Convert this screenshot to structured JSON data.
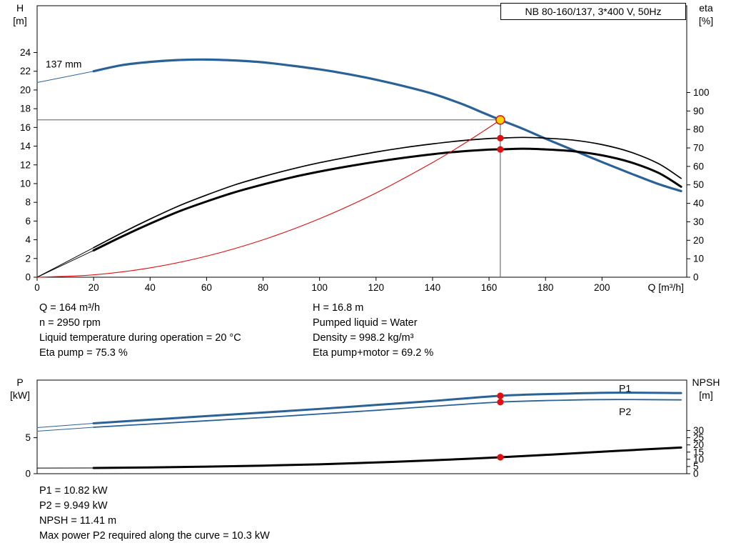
{
  "title_box": "NB 80-160/137, 3*400 V, 50Hz",
  "info_top": {
    "left": [
      "Q = 164 m³/h",
      "n = 2950 rpm",
      "Liquid temperature during operation = 20 °C",
      "Eta pump = 75.3 %"
    ],
    "right": [
      "H = 16.8 m",
      "Pumped liquid = Water",
      "Density = 998.2 kg/m³",
      "Eta pump+motor = 69.2 %"
    ]
  },
  "info_bottom": [
    "P1 = 10.82 kW",
    "P2 = 9.949 kW",
    "NPSH = 11.41 m",
    "Max power P2 required along the curve = 10.3 kW"
  ],
  "colors": {
    "curve_blue": "#2b6296",
    "curve_black": "#000000",
    "marker_red": "#e01010",
    "duty_yellow": "#ffd400",
    "guide_gray": "#444444"
  },
  "chart_data": [
    {
      "type": "line",
      "name": "hq-eta-chart",
      "title": "NB 80-160/137, 3*400 V, 50Hz",
      "x": {
        "label": "Q [m³/h]",
        "range": [
          0,
          230
        ],
        "ticks": [
          0,
          20,
          40,
          60,
          80,
          100,
          120,
          140,
          160,
          180,
          200
        ]
      },
      "y_left": {
        "label": "H [m]",
        "range": [
          0,
          29
        ],
        "ticks": [
          0,
          2,
          4,
          6,
          8,
          10,
          12,
          14,
          16,
          18,
          20,
          22,
          24
        ]
      },
      "y_right": {
        "label": "eta [%]",
        "range": [
          0,
          147
        ],
        "ticks": [
          0,
          10,
          20,
          30,
          40,
          50,
          60,
          70,
          80,
          90,
          100
        ]
      },
      "duty_point": {
        "q": 164,
        "h": 16.8,
        "eta_pump": 75.3,
        "eta_pump_motor": 69.2,
        "impeller": "137 mm"
      },
      "series": [
        {
          "name": "head-lead",
          "axis": "left",
          "color": "#2b6296",
          "width": 1,
          "smooth": false,
          "points": [
            [
              0,
              20.8
            ],
            [
              20,
              22.0
            ]
          ]
        },
        {
          "name": "head-curve",
          "axis": "left",
          "color": "#2b6296",
          "width": 3.2,
          "smooth": true,
          "points": [
            [
              20,
              22.0
            ],
            [
              30,
              22.65
            ],
            [
              40,
              23.0
            ],
            [
              50,
              23.2
            ],
            [
              60,
              23.25
            ],
            [
              70,
              23.15
            ],
            [
              80,
              22.95
            ],
            [
              90,
              22.6
            ],
            [
              100,
              22.2
            ],
            [
              110,
              21.7
            ],
            [
              120,
              21.1
            ],
            [
              130,
              20.4
            ],
            [
              140,
              19.6
            ],
            [
              150,
              18.55
            ],
            [
              158,
              17.55
            ],
            [
              164,
              16.8
            ],
            [
              172,
              15.85
            ],
            [
              180,
              14.8
            ],
            [
              190,
              13.55
            ],
            [
              200,
              12.3
            ],
            [
              210,
              11.1
            ],
            [
              220,
              9.95
            ],
            [
              228,
              9.2
            ]
          ]
        },
        {
          "name": "eta-pump-lead",
          "axis": "right",
          "color": "#000000",
          "width": 1,
          "smooth": false,
          "points": [
            [
              0,
              0
            ],
            [
              20,
              16
            ]
          ]
        },
        {
          "name": "eta-pump-curve",
          "axis": "right",
          "color": "#000000",
          "width": 1.7,
          "smooth": true,
          "points": [
            [
              20,
              16
            ],
            [
              30,
              24
            ],
            [
              40,
              31.5
            ],
            [
              50,
              38.5
            ],
            [
              60,
              44.5
            ],
            [
              70,
              50
            ],
            [
              80,
              54.5
            ],
            [
              90,
              58.5
            ],
            [
              100,
              62
            ],
            [
              110,
              65
            ],
            [
              120,
              67.8
            ],
            [
              130,
              70.2
            ],
            [
              140,
              72.2
            ],
            [
              150,
              73.9
            ],
            [
              160,
              75.1
            ],
            [
              164,
              75.3
            ],
            [
              172,
              75.7
            ],
            [
              180,
              75.3
            ],
            [
              190,
              74.2
            ],
            [
              200,
              71.8
            ],
            [
              210,
              67.8
            ],
            [
              220,
              61.5
            ],
            [
              228,
              53.5
            ]
          ]
        },
        {
          "name": "eta-pump-motor-lead",
          "axis": "right",
          "color": "#000000",
          "width": 1,
          "smooth": false,
          "points": [
            [
              0,
              0
            ],
            [
              20,
              14.5
            ]
          ]
        },
        {
          "name": "eta-pump-motor-curve",
          "axis": "right",
          "color": "#000000",
          "width": 3,
          "smooth": true,
          "points": [
            [
              20,
              14.5
            ],
            [
              30,
              22
            ],
            [
              40,
              29
            ],
            [
              50,
              35.5
            ],
            [
              60,
              41
            ],
            [
              70,
              46
            ],
            [
              80,
              50.2
            ],
            [
              90,
              54
            ],
            [
              100,
              57.2
            ],
            [
              110,
              60
            ],
            [
              120,
              62.5
            ],
            [
              130,
              64.7
            ],
            [
              140,
              66.6
            ],
            [
              150,
              68.1
            ],
            [
              160,
              69.1
            ],
            [
              164,
              69.2
            ],
            [
              172,
              69.6
            ],
            [
              180,
              69.2
            ],
            [
              190,
              68.2
            ],
            [
              200,
              66
            ],
            [
              210,
              62.3
            ],
            [
              220,
              56.5
            ],
            [
              228,
              49
            ]
          ]
        },
        {
          "name": "system-curve",
          "axis": "left",
          "color": "#e01010",
          "width": 1.1,
          "smooth": true,
          "points": [
            [
              0,
              0
            ],
            [
              20,
              0.25
            ],
            [
              40,
              1.0
            ],
            [
              60,
              2.25
            ],
            [
              80,
              4.0
            ],
            [
              100,
              6.25
            ],
            [
              120,
              9.0
            ],
            [
              140,
              12.25
            ],
            [
              150,
              14.05
            ],
            [
              158,
              15.6
            ],
            [
              164,
              16.8
            ]
          ]
        },
        {
          "name": "duty-hline",
          "axis": "left",
          "color": "#444444",
          "width": 0.9,
          "smooth": false,
          "points": [
            [
              0,
              16.8
            ],
            [
              164,
              16.8
            ]
          ]
        },
        {
          "name": "duty-vline",
          "axis": "left",
          "color": "#444444",
          "width": 0.9,
          "smooth": false,
          "points": [
            [
              164,
              0
            ],
            [
              164,
              16.8
            ]
          ]
        }
      ],
      "markers": [
        {
          "name": "duty-point",
          "axis": "left",
          "x": 164,
          "y": 16.8,
          "r": 6,
          "fill": "#ffd400",
          "stroke": "#e01010",
          "sw": 1.5
        },
        {
          "name": "eta-pump-point",
          "axis": "right",
          "x": 164,
          "y": 75.3,
          "r": 4.6,
          "fill": "#e01010"
        },
        {
          "name": "eta-pump-motor-point",
          "axis": "right",
          "x": 164,
          "y": 69.2,
          "r": 4.6,
          "fill": "#e01010"
        }
      ],
      "annotations": [
        {
          "name": "impeller-diameter-label",
          "text": "137 mm",
          "axis": "left",
          "x": 3,
          "y": 22.4,
          "color": "#000000"
        }
      ]
    },
    {
      "type": "line",
      "name": "power-npsh-chart",
      "title": "",
      "x": {
        "label": "",
        "range": [
          0,
          230
        ],
        "ticks": []
      },
      "y_left": {
        "label": "P [kW]",
        "range": [
          0,
          13
        ],
        "ticks": [
          0,
          5
        ]
      },
      "y_right": {
        "label": "NPSH [m]",
        "range": [
          0,
          65
        ],
        "ticks": [
          0,
          5,
          10,
          15,
          20,
          25,
          30
        ]
      },
      "duty_point": {
        "q": 164,
        "p1_kw": 10.82,
        "p2_kw": 9.949,
        "npsh_m": 11.41
      },
      "series": [
        {
          "name": "p1-lead",
          "axis": "left",
          "color": "#2b6296",
          "width": 1,
          "smooth": false,
          "points": [
            [
              0,
              6.4
            ],
            [
              20,
              7.0
            ]
          ]
        },
        {
          "name": "p1-curve",
          "axis": "left",
          "color": "#2b6296",
          "width": 3,
          "smooth": true,
          "points": [
            [
              20,
              7.0
            ],
            [
              40,
              7.5
            ],
            [
              60,
              8.0
            ],
            [
              80,
              8.5
            ],
            [
              100,
              9.0
            ],
            [
              120,
              9.55
            ],
            [
              140,
              10.1
            ],
            [
              164,
              10.82
            ],
            [
              185,
              11.1
            ],
            [
              205,
              11.25
            ],
            [
              228,
              11.2
            ]
          ]
        },
        {
          "name": "p2-lead",
          "axis": "left",
          "color": "#2b6296",
          "width": 1,
          "smooth": false,
          "points": [
            [
              0,
              5.9
            ],
            [
              20,
              6.45
            ]
          ]
        },
        {
          "name": "p2-curve",
          "axis": "left",
          "color": "#2b6296",
          "width": 1.8,
          "smooth": true,
          "points": [
            [
              20,
              6.45
            ],
            [
              40,
              6.9
            ],
            [
              60,
              7.35
            ],
            [
              80,
              7.8
            ],
            [
              100,
              8.3
            ],
            [
              120,
              8.8
            ],
            [
              140,
              9.35
            ],
            [
              164,
              9.95
            ],
            [
              185,
              10.2
            ],
            [
              205,
              10.3
            ],
            [
              228,
              10.25
            ]
          ]
        },
        {
          "name": "npsh-lead",
          "axis": "right",
          "color": "#000000",
          "width": 1,
          "smooth": false,
          "points": [
            [
              0,
              3.9
            ],
            [
              20,
              4.0
            ]
          ]
        },
        {
          "name": "npsh-curve",
          "axis": "right",
          "color": "#000000",
          "width": 3,
          "smooth": true,
          "points": [
            [
              20,
              4.0
            ],
            [
              40,
              4.35
            ],
            [
              60,
              4.9
            ],
            [
              80,
              5.6
            ],
            [
              100,
              6.5
            ],
            [
              120,
              7.8
            ],
            [
              140,
              9.3
            ],
            [
              164,
              11.41
            ],
            [
              185,
              13.6
            ],
            [
              205,
              15.8
            ],
            [
              228,
              18.2
            ]
          ]
        }
      ],
      "markers": [
        {
          "name": "p1-point",
          "axis": "left",
          "x": 164,
          "y": 10.82,
          "r": 4.6,
          "fill": "#e01010"
        },
        {
          "name": "p2-point",
          "axis": "left",
          "x": 164,
          "y": 9.949,
          "r": 4.6,
          "fill": "#e01010"
        },
        {
          "name": "npsh-point",
          "axis": "right",
          "x": 164,
          "y": 11.41,
          "r": 4.6,
          "fill": "#e01010"
        }
      ],
      "annotations": [
        {
          "name": "p1-label",
          "text": "P1",
          "axis": "left",
          "x": 206,
          "y": 11.35,
          "color": "#2b6296"
        },
        {
          "name": "p2-label",
          "text": "P2",
          "axis": "left",
          "x": 206,
          "y": 8.15,
          "color": "#2b6296"
        }
      ]
    }
  ]
}
